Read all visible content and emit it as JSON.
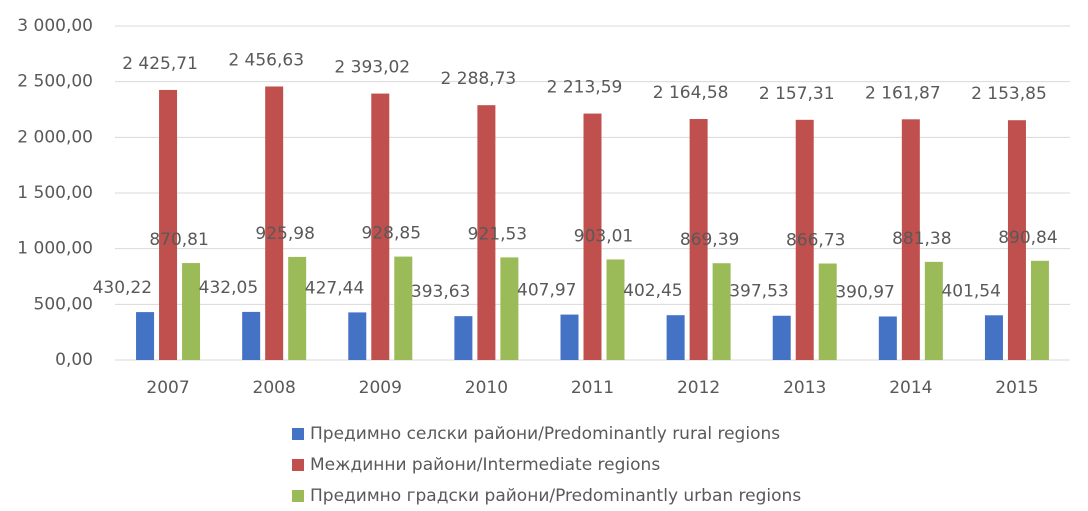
{
  "chart_data": {
    "type": "bar",
    "categories": [
      "2007",
      "2008",
      "2009",
      "2010",
      "2011",
      "2012",
      "2013",
      "2014",
      "2015"
    ],
    "series": [
      {
        "name": "Предимно селски райони/Predominantly rural regions",
        "color": "#4472c4",
        "values": [
          430.22,
          432.05,
          427.44,
          393.63,
          407.97,
          402.45,
          397.53,
          390.97,
          401.54
        ],
        "value_labels": [
          "430,22",
          "432,05",
          "427,44",
          "393,63",
          "407,97",
          "402,45",
          "397,53",
          "390,97",
          "401,54"
        ]
      },
      {
        "name": "Междинни райони/Intermediate regions",
        "color": "#c0504d",
        "values": [
          2425.71,
          2456.63,
          2393.02,
          2288.73,
          2213.59,
          2164.58,
          2157.31,
          2161.87,
          2153.85
        ],
        "value_labels": [
          "2 425,71",
          "2 456,63",
          "2 393,02",
          "2 288,73",
          "2 213,59",
          "2 164,58",
          "2 157,31",
          "2 161,87",
          "2 153,85"
        ]
      },
      {
        "name": "Предимно градски райони/Predominantly urban regions",
        "color": "#9bbb59",
        "values": [
          870.81,
          925.98,
          928.85,
          921.53,
          903.01,
          869.39,
          866.73,
          881.38,
          890.84
        ],
        "value_labels": [
          "870,81",
          "925,98",
          "928,85",
          "921,53",
          "903,01",
          "869,39",
          "866,73",
          "881,38",
          "890,84"
        ]
      }
    ],
    "ylim": [
      0,
      3000
    ],
    "yticks": [
      {
        "value": 0,
        "label": "0,00"
      },
      {
        "value": 500,
        "label": "500,00"
      },
      {
        "value": 1000,
        "label": "1 000,00"
      },
      {
        "value": 1500,
        "label": "1 500,00"
      },
      {
        "value": 2000,
        "label": "2 000,00"
      },
      {
        "value": 2500,
        "label": "2 500,00"
      },
      {
        "value": 3000,
        "label": "3 000,00"
      }
    ],
    "grid": true,
    "legend": "bottom"
  }
}
